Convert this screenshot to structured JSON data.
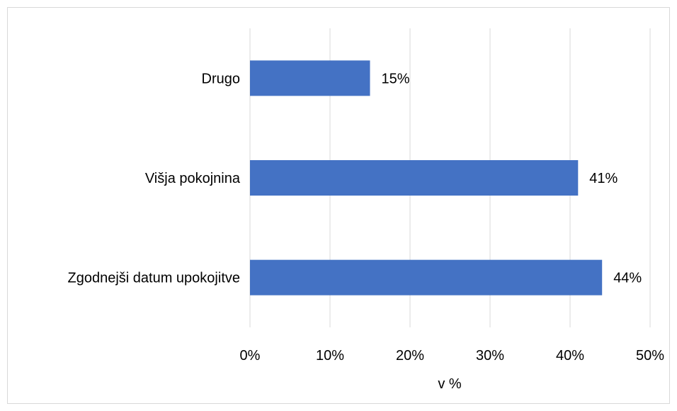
{
  "chart_data": {
    "type": "bar",
    "orientation": "horizontal",
    "categories": [
      "Drugo",
      "Višja pokojnina",
      "Zgodnejši datum upokojitve"
    ],
    "values": [
      15,
      41,
      44
    ],
    "data_labels": [
      "15%",
      "41%",
      "44%"
    ],
    "xlabel": "v %",
    "ylabel": "",
    "title": "",
    "xlim": [
      0,
      50
    ],
    "xticks": [
      0,
      10,
      20,
      30,
      40,
      50
    ],
    "xtick_labels": [
      "0%",
      "10%",
      "20%",
      "30%",
      "40%",
      "50%"
    ],
    "bar_color": "#4472C4",
    "grid": "vertical",
    "grid_color": "#d9d9d9",
    "legend": "none"
  }
}
